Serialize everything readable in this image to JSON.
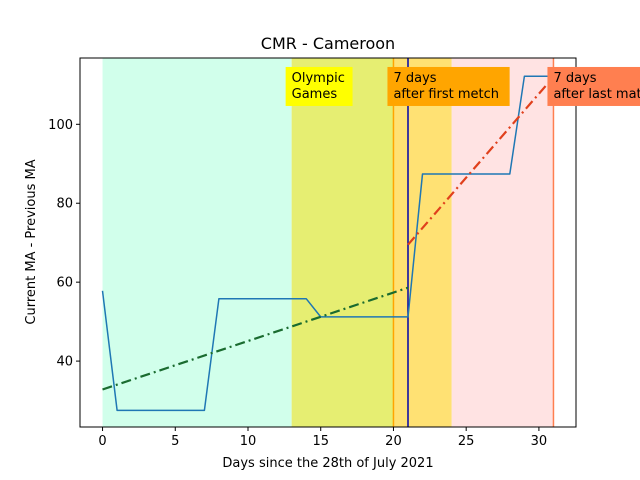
{
  "chart_data": {
    "type": "line",
    "title": "CMR - Cameroon",
    "xlabel": "Days since the 28th of July 2021",
    "ylabel": "Current MA - Previous MA",
    "xlim": [
      -1.55,
      32.55
    ],
    "ylim": [
      23.3,
      116.8
    ],
    "xticks": [
      0,
      5,
      10,
      15,
      20,
      25,
      30
    ],
    "yticks": [
      40,
      60,
      80,
      100
    ],
    "grid": false,
    "regions": [
      {
        "x0": 0,
        "x1": 13,
        "color": "#ccffe9",
        "opacity": 0.9
      },
      {
        "x0": 13,
        "x1": 24,
        "color": "#e6ee72",
        "opacity": 1.0
      },
      {
        "x0": 20,
        "x1": 24,
        "color": "#ffe173",
        "opacity": 1.0
      },
      {
        "x0": 24,
        "x1": 31,
        "color": "#ffe3e3",
        "opacity": 1.0
      }
    ],
    "vlines": [
      {
        "x": 20,
        "color": "#ffa500"
      },
      {
        "x": 21,
        "color": "#0000aa"
      },
      {
        "x": 31,
        "color": "#ff7f50"
      }
    ],
    "series": [
      {
        "color": "#1f77b4",
        "style": "solid",
        "x": [
          0,
          1,
          7,
          8,
          14,
          15,
          21,
          22,
          28,
          29,
          31
        ],
        "y": [
          57.8,
          27.5,
          27.5,
          55.8,
          55.8,
          51.2,
          51.2,
          87.4,
          87.4,
          112.2,
          112.2
        ]
      },
      {
        "color": "#1a6b2f",
        "style": "dashdot",
        "x": [
          0,
          21
        ],
        "y": [
          32.8,
          58.6
        ]
      },
      {
        "color": "#e0401c",
        "style": "dashdot",
        "x": [
          21,
          31
        ],
        "y": [
          69.5,
          112.0
        ]
      }
    ],
    "annotations": [
      {
        "lines": [
          "Olympic",
          "Games"
        ],
        "box_color": "#ffff00",
        "x": 13,
        "y": 112.5,
        "w_days": 4.6
      },
      {
        "lines": [
          "7 days",
          "after first metch"
        ],
        "box_color": "#ffa500",
        "x": 20,
        "y": 112.5,
        "w_days": 8.4
      },
      {
        "lines": [
          "7 days",
          "after last match"
        ],
        "box_color": "#ff7f50",
        "x": 31,
        "y": 112.5,
        "w_days": 8.0
      }
    ]
  }
}
